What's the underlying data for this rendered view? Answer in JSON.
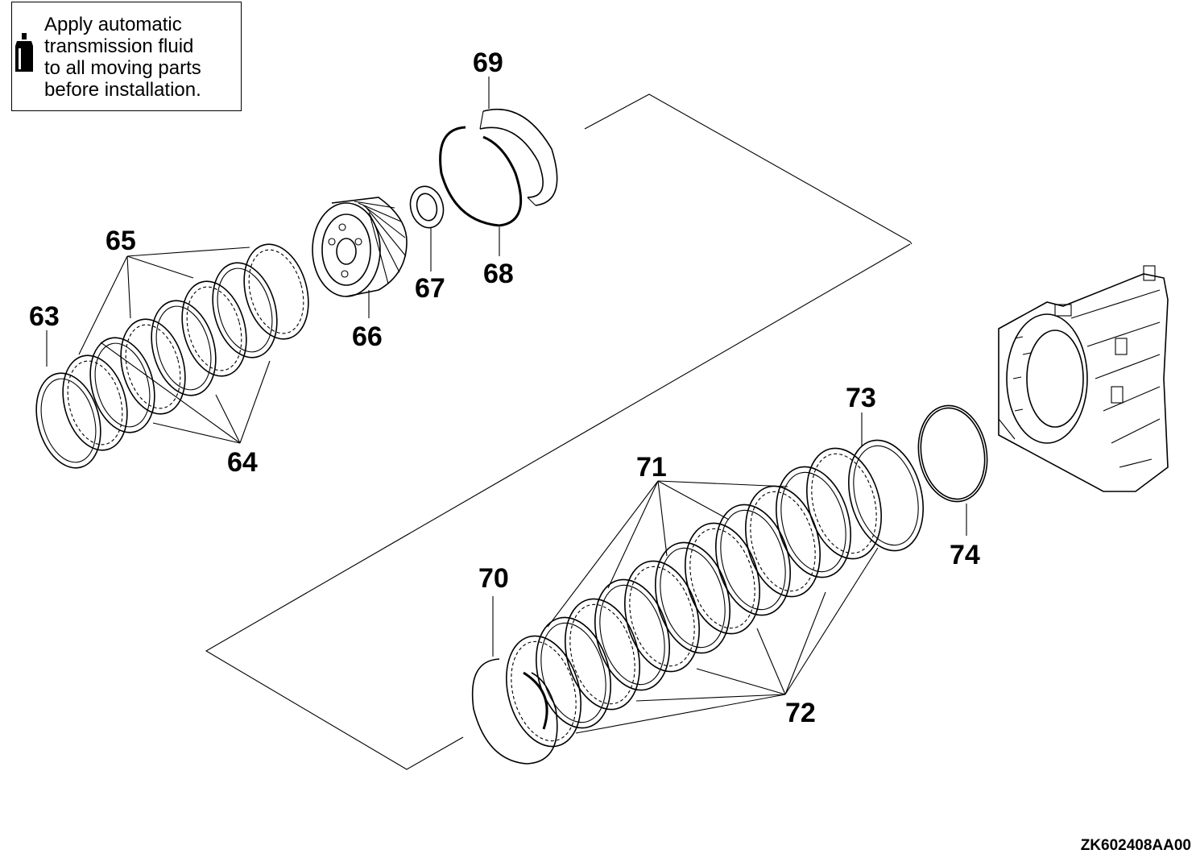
{
  "note": {
    "icon": "fluid-bottle-icon",
    "text": "Apply automatic\ntransmission fluid\nto all moving parts\nbefore installation."
  },
  "callouts": {
    "c63": "63",
    "c64": "64",
    "c65": "65",
    "c66": "66",
    "c67": "67",
    "c68": "68",
    "c69": "69",
    "c70": "70",
    "c71": "71",
    "c72": "72",
    "c73": "73",
    "c74": "74"
  },
  "figure_id": "ZK602408AA00"
}
